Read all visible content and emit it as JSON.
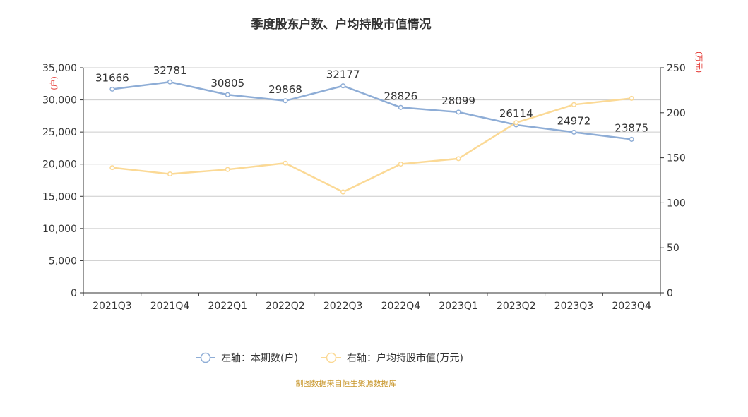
{
  "title": "季度股东户数、户均持股市值情况",
  "source": "制图数据来自恒生聚源数据库",
  "colors": {
    "left_series": "#8eadd6",
    "right_series": "#fbd995",
    "axis": "#333333",
    "grid": "#cccccc",
    "unit": "#e3342f",
    "source": "#c8962a"
  },
  "chart_data": {
    "type": "line",
    "title": "季度股东户数、户均持股市值情况",
    "categories": [
      "2021Q3",
      "2021Q4",
      "2022Q1",
      "2022Q2",
      "2022Q3",
      "2022Q4",
      "2023Q1",
      "2023Q2",
      "2023Q3",
      "2023Q4"
    ],
    "left_axis": {
      "unit": "(户)",
      "ylim": [
        0,
        35000
      ],
      "ticks": [
        "0",
        "5,000",
        "10,000",
        "15,000",
        "20,000",
        "25,000",
        "30,000",
        "35,000"
      ]
    },
    "right_axis": {
      "unit": "(万元)",
      "ylim": [
        0,
        250
      ],
      "ticks": [
        "0",
        "50",
        "100",
        "150",
        "200",
        "250"
      ]
    },
    "series": [
      {
        "name": "左轴：本期数(户)",
        "axis": "left",
        "values": [
          31666,
          32781,
          30805,
          29868,
          32177,
          28826,
          28099,
          26114,
          24972,
          23875
        ],
        "labels": [
          "31666",
          "32781",
          "30805",
          "29868",
          "32177",
          "28826",
          "28099",
          "26114",
          "24972",
          "23875"
        ]
      },
      {
        "name": "右轴：户均持股市值(万元)",
        "axis": "right",
        "values": [
          139,
          132,
          137,
          144,
          112,
          143,
          149,
          189,
          209,
          216
        ]
      }
    ],
    "grid": true,
    "legend_position": "bottom"
  }
}
